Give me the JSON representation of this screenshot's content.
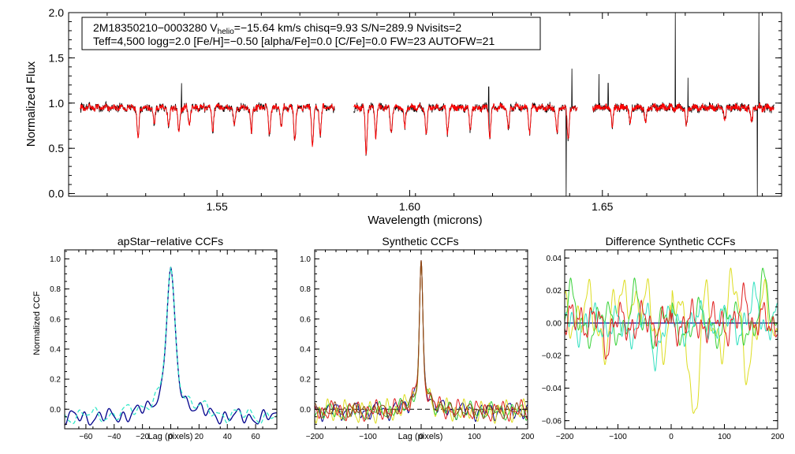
{
  "chart_data": [
    {
      "type": "line",
      "id": "spectrum",
      "annotation": {
        "line1_prefix": "2M18350210−0003280  V",
        "line1_sub": "helio",
        "line1_suffix": "=−15.64 km/s  chisq=9.93  S/N=289.9  Nvisits=2",
        "line2": "Teff=4,500 logg=2.0 [Fe/H]=−0.50 [alpha/Fe]=0.0 [C/Fe]=0.0 FW=23 AUTOFW=21"
      },
      "xlabel": "Wavelength (microns)",
      "ylabel": "Normalized Flux",
      "xlim": [
        1.5115,
        1.6965
      ],
      "ylim": [
        -0.03,
        2.0
      ],
      "xticks": [
        1.55,
        1.6,
        1.65
      ],
      "xtick_labels": [
        "1.55",
        "1.60",
        "1.65"
      ],
      "yticks": [
        0.0,
        0.5,
        1.0,
        1.5,
        2.0
      ],
      "ytick_labels": [
        "0.0",
        "0.5",
        "1.0",
        "1.5",
        "2.0"
      ],
      "chips": [
        [
          1.5145,
          1.5805
        ],
        [
          1.5855,
          1.6435
        ],
        [
          1.6475,
          1.6945
        ]
      ],
      "series": [
        {
          "name": "observed",
          "color": "#000000"
        },
        {
          "name": "model",
          "color": "#ff0000"
        }
      ],
      "features": [
        {
          "x": 1.5295,
          "depth": 0.35
        },
        {
          "x": 1.5337,
          "depth": 0.2
        },
        {
          "x": 1.5375,
          "depth": 0.22
        },
        {
          "x": 1.5401,
          "depth": 0.28
        },
        {
          "x": 1.5428,
          "depth": 0.2
        },
        {
          "x": 1.5489,
          "depth": 0.25
        },
        {
          "x": 1.5545,
          "depth": 0.22
        },
        {
          "x": 1.5589,
          "depth": 0.28
        },
        {
          "x": 1.5636,
          "depth": 0.3
        },
        {
          "x": 1.5667,
          "depth": 0.22
        },
        {
          "x": 1.5702,
          "depth": 0.35
        },
        {
          "x": 1.5748,
          "depth": 0.42
        },
        {
          "x": 1.5768,
          "depth": 0.3
        },
        {
          "x": 1.5887,
          "depth": 0.5
        },
        {
          "x": 1.5912,
          "depth": 0.3
        },
        {
          "x": 1.5952,
          "depth": 0.28
        },
        {
          "x": 1.5987,
          "depth": 0.22
        },
        {
          "x": 1.6043,
          "depth": 0.3
        },
        {
          "x": 1.6098,
          "depth": 0.28
        },
        {
          "x": 1.6157,
          "depth": 0.25
        },
        {
          "x": 1.6208,
          "depth": 0.32
        },
        {
          "x": 1.6256,
          "depth": 0.25
        },
        {
          "x": 1.6311,
          "depth": 0.28
        },
        {
          "x": 1.6382,
          "depth": 0.3
        },
        {
          "x": 1.6411,
          "depth": 0.35
        },
        {
          "x": 1.6526,
          "depth": 0.2
        },
        {
          "x": 1.6572,
          "depth": 0.18
        },
        {
          "x": 1.6612,
          "depth": 0.18
        },
        {
          "x": 1.6718,
          "depth": 0.2
        },
        {
          "x": 1.6818,
          "depth": 0.15
        },
        {
          "x": 1.6887,
          "depth": 0.18
        }
      ],
      "spikes": [
        {
          "x": 1.5408,
          "y": 1.22
        },
        {
          "x": 1.6205,
          "y": 1.18
        },
        {
          "x": 1.6421,
          "y": 1.38
        },
        {
          "x": 1.6491,
          "y": 1.32
        },
        {
          "x": 1.6515,
          "y": 1.22
        },
        {
          "x": 1.6689,
          "y": 2.0
        },
        {
          "x": 1.6722,
          "y": 1.28
        },
        {
          "x": 1.6906,
          "y": 2.0
        }
      ],
      "dips": [
        {
          "x": 1.6406,
          "y": -0.03
        },
        {
          "x": 1.6902,
          "y": -0.03
        }
      ]
    },
    {
      "type": "line",
      "id": "apstar-ccf",
      "title": "apStar−relative CCFs",
      "xlabel": "Lag (pixels)",
      "ylabel": "Normalized CCF",
      "xlim": [
        -75,
        75
      ],
      "ylim": [
        -0.13,
        1.06
      ],
      "xticks": [
        -60,
        -40,
        -20,
        0,
        20,
        40,
        60
      ],
      "xtick_labels": [
        "−60",
        "−40",
        "−20",
        "0",
        "20",
        "40",
        "60"
      ],
      "yticks": [
        0.0,
        0.2,
        0.4,
        0.6,
        0.8,
        1.0
      ],
      "ytick_labels": [
        "0.0",
        "0.2",
        "0.4",
        "0.6",
        "0.8",
        "1.0"
      ],
      "series": [
        {
          "name": "combined",
          "color": "#00008b",
          "peak": 1.0,
          "width": 2.8,
          "wing": 0.32,
          "wing_width": 11,
          "baseline": -0.055,
          "wiggle": [
            [
              9.0,
              0.032,
              0.0
            ],
            [
              23.0,
              0.022,
              1.3
            ],
            [
              5.5,
              0.012,
              2.1
            ]
          ]
        },
        {
          "name": "visit",
          "color": "#33e8c8",
          "peak": 0.985,
          "width": 2.8,
          "wing": 0.33,
          "wing_width": 12,
          "baseline": -0.045,
          "wiggle": [
            [
              11.0,
              0.03,
              0.7
            ],
            [
              27.0,
              0.025,
              2.4
            ],
            [
              6.0,
              0.01,
              0.4
            ]
          ]
        }
      ]
    },
    {
      "type": "line",
      "id": "synthetic-ccf",
      "title": "Synthetic CCFs",
      "xlabel": "Lag (pixels)",
      "xlim": [
        -200,
        200
      ],
      "ylim": [
        -0.13,
        1.06
      ],
      "xticks": [
        -200,
        -100,
        0,
        100,
        200
      ],
      "xtick_labels": [
        "−200",
        "−100",
        "0",
        "100",
        "200"
      ],
      "yticks": [
        0.0,
        0.2,
        0.4,
        0.6,
        0.8,
        1.0
      ],
      "ytick_labels": [
        "0.0",
        "0.2",
        "0.4",
        "0.6",
        "0.8",
        "1.0"
      ],
      "baseline": {
        "y": 0.0,
        "style": "dashed"
      },
      "series": [
        {
          "name": "visit-1",
          "color": "#00008b",
          "peak": 1.0,
          "width": 3,
          "wing": 0.3,
          "wing_width": 14,
          "baseline": -0.01,
          "wiggle": [
            [
              18,
              0.035,
              0.3
            ],
            [
              41,
              0.025,
              1.7
            ],
            [
              9,
              0.012,
              2.6
            ]
          ]
        },
        {
          "name": "visit-2",
          "color": "#dddd22",
          "peak": 1.0,
          "width": 3,
          "wing": 0.3,
          "wing_width": 14,
          "baseline": -0.015,
          "wiggle": [
            [
              16,
              0.045,
              1.1
            ],
            [
              37,
              0.03,
              0.2
            ],
            [
              8,
              0.015,
              1.9
            ]
          ]
        },
        {
          "name": "visit-3",
          "color": "#3ad23a",
          "peak": 1.0,
          "width": 3,
          "wing": 0.3,
          "wing_width": 14,
          "baseline": -0.012,
          "wiggle": [
            [
              19,
              0.035,
              2.2
            ],
            [
              44,
              0.022,
              0.9
            ],
            [
              10,
              0.012,
              0.5
            ]
          ]
        },
        {
          "name": "visit-4",
          "color": "#e02020",
          "peak": 1.0,
          "width": 3,
          "wing": 0.3,
          "wing_width": 14,
          "baseline": -0.01,
          "wiggle": [
            [
              17,
              0.038,
              0.8
            ],
            [
              39,
              0.028,
              2.9
            ],
            [
              8.5,
              0.014,
              1.4
            ]
          ]
        },
        {
          "name": "combined",
          "color": "#8b4513",
          "peak": 1.0,
          "width": 3,
          "wing": 0.3,
          "wing_width": 14,
          "baseline": -0.01,
          "wiggle": [
            [
              18,
              0.03,
              1.5
            ],
            [
              42,
              0.02,
              0.6
            ],
            [
              9.5,
              0.01,
              2.2
            ]
          ]
        }
      ]
    },
    {
      "type": "line",
      "id": "difference-ccf",
      "title": "Difference Synthetic CCFs",
      "xlim": [
        -200,
        200
      ],
      "ylim": [
        -0.065,
        0.045
      ],
      "xticks": [
        -200,
        -100,
        0,
        100,
        200
      ],
      "xtick_labels": [
        "−200",
        "−100",
        "0",
        "100",
        "200"
      ],
      "yticks": [
        -0.06,
        -0.04,
        -0.02,
        0.0,
        0.02,
        0.04
      ],
      "ytick_labels": [
        "−0.06",
        "−0.04",
        "−0.02",
        "0.00",
        "0.02",
        "0.04"
      ],
      "zero_line_color": "#00008b",
      "series": [
        {
          "name": "visit-2",
          "color": "#dddd22",
          "wiggle": [
            [
              55,
              0.016,
              0.5
            ],
            [
              22,
              0.009,
              1.9
            ],
            [
              11,
              0.004,
              0.7
            ]
          ],
          "events": [
            [
              -75,
              0.028,
              15
            ],
            [
              45,
              -0.055,
              9
            ],
            [
              -185,
              0.015,
              14
            ],
            [
              140,
              -0.015,
              12
            ],
            [
              115,
              0.015,
              10
            ]
          ]
        },
        {
          "name": "visit-3",
          "color": "#3ad23a",
          "wiggle": [
            [
              60,
              0.008,
              2.1
            ],
            [
              24,
              0.006,
              0.4
            ],
            [
              10,
              0.003,
              1.2
            ]
          ],
          "events": [
            [
              -190,
              0.012,
              10
            ],
            [
              175,
              0.02,
              10
            ],
            [
              -70,
              0.012,
              10
            ]
          ]
        },
        {
          "name": "visit-1",
          "color": "#33e0c0",
          "wiggle": [
            [
              50,
              0.007,
              1.4
            ],
            [
              20,
              0.005,
              2.8
            ],
            [
              9,
              0.003,
              0.2
            ]
          ],
          "events": [
            [
              -30,
              -0.02,
              8
            ],
            [
              160,
              0.014,
              10
            ],
            [
              -90,
              -0.006,
              12
            ]
          ]
        },
        {
          "name": "visit-4",
          "color": "#e02020",
          "wiggle": [
            [
              45,
              0.006,
              2.6
            ],
            [
              19,
              0.006,
              1.1
            ],
            [
              8,
              0.003,
              2.0
            ]
          ],
          "events": [
            [
              140,
              0.02,
              7
            ],
            [
              -120,
              -0.012,
              7
            ],
            [
              -170,
              0.006,
              8
            ]
          ]
        }
      ]
    }
  ]
}
